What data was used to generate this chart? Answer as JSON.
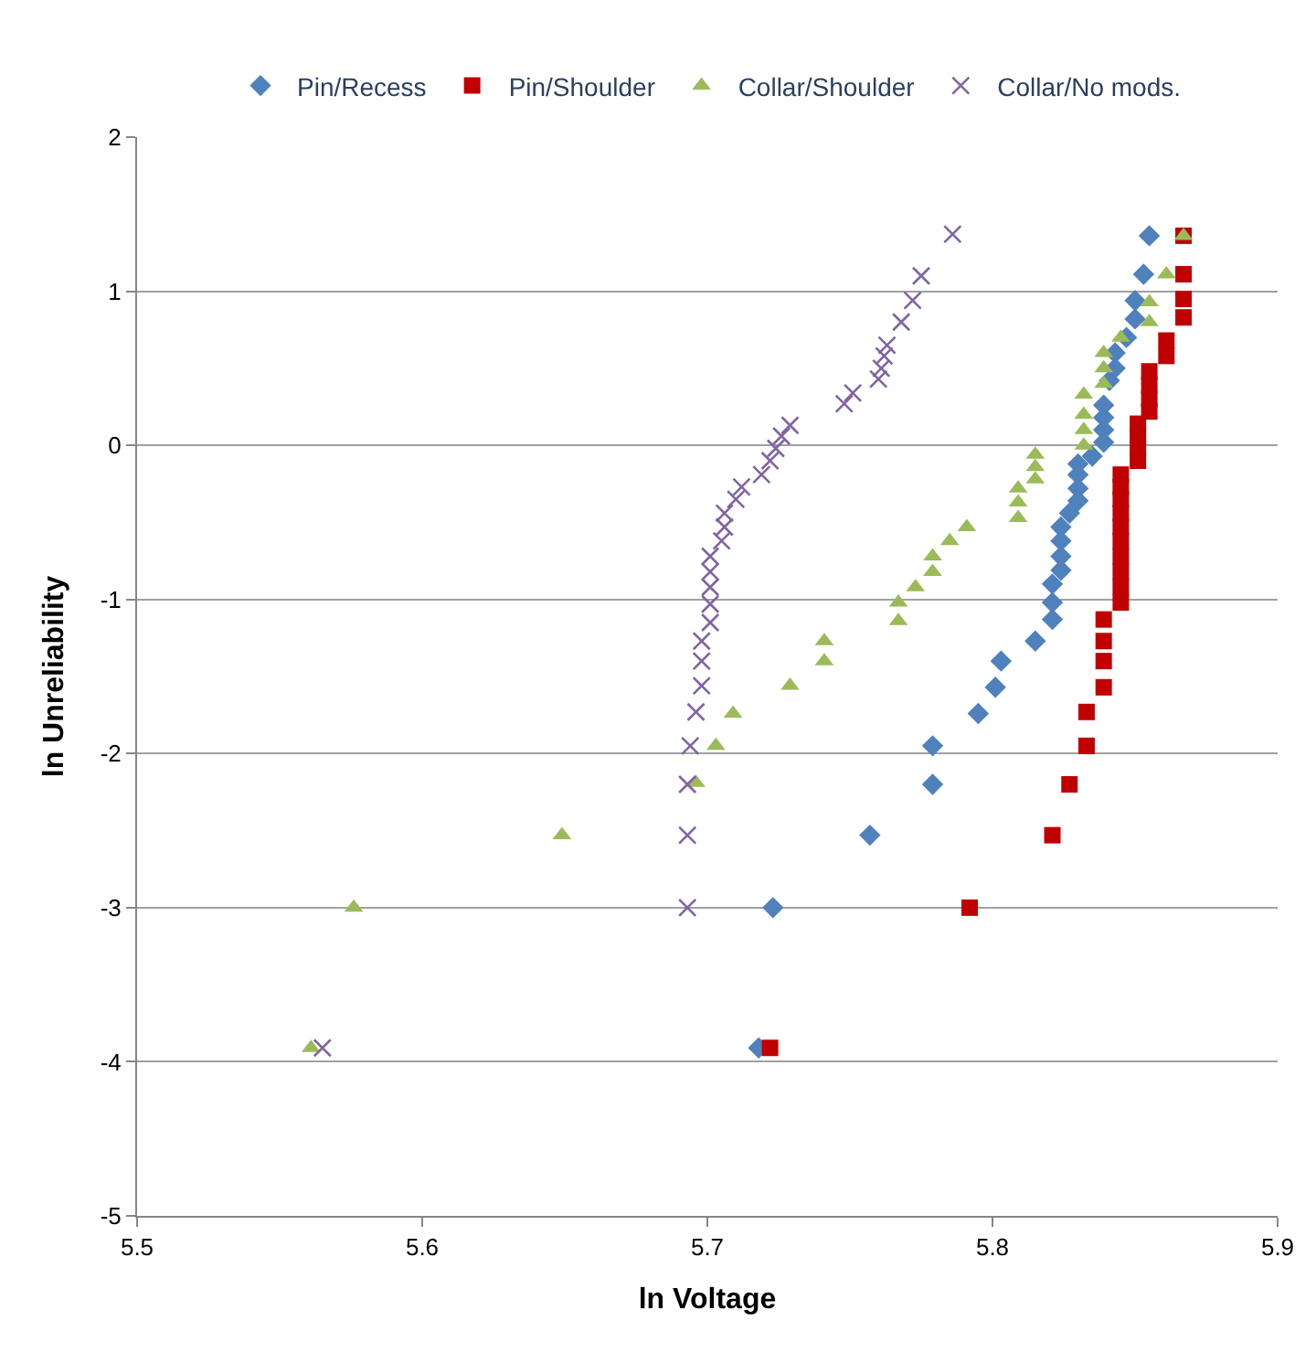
{
  "chart_data": {
    "type": "scatter",
    "xlabel": "ln Voltage",
    "ylabel": "ln Unreliability",
    "xlim": [
      5.5,
      5.9
    ],
    "xticks": [
      5.5,
      5.6,
      5.7,
      5.8,
      5.9
    ],
    "ylim": [
      -5,
      2
    ],
    "yticks": [
      -5,
      -4,
      -3,
      -2,
      -1,
      0,
      1,
      2
    ],
    "grid": "y",
    "legend": "top",
    "series": [
      {
        "name": "Pin/Recess",
        "color": "#4f81bd",
        "marker": "diamond",
        "x": [
          5.718,
          5.723,
          5.757,
          5.779,
          5.779,
          5.795,
          5.801,
          5.803,
          5.815,
          5.821,
          5.821,
          5.821,
          5.824,
          5.824,
          5.824,
          5.824,
          5.827,
          5.83,
          5.83,
          5.83,
          5.83,
          5.835,
          5.839,
          5.839,
          5.839,
          5.839,
          5.841,
          5.843,
          5.843,
          5.847,
          5.85,
          5.85,
          5.853,
          5.855
        ],
        "values": [
          -3.91,
          -3.0,
          -2.53,
          -2.2,
          -1.95,
          -1.74,
          -1.57,
          -1.4,
          -1.27,
          -1.13,
          -1.02,
          -0.9,
          -0.81,
          -0.72,
          -0.62,
          -0.53,
          -0.44,
          -0.36,
          -0.28,
          -0.19,
          -0.12,
          -0.07,
          0.02,
          0.1,
          0.18,
          0.26,
          0.42,
          0.5,
          0.6,
          0.7,
          0.82,
          0.94,
          1.11,
          1.36
        ]
      },
      {
        "name": "Pin/Shoulder",
        "color": "#c00000",
        "marker": "square",
        "x": [
          5.722,
          5.792,
          5.821,
          5.827,
          5.833,
          5.833,
          5.839,
          5.839,
          5.839,
          5.839,
          5.845,
          5.845,
          5.845,
          5.845,
          5.845,
          5.845,
          5.845,
          5.845,
          5.845,
          5.845,
          5.851,
          5.851,
          5.851,
          5.851,
          5.855,
          5.855,
          5.855,
          5.855,
          5.861,
          5.861,
          5.867,
          5.867,
          5.867,
          5.867
        ],
        "values": [
          -3.91,
          -3.0,
          -2.53,
          -2.2,
          -1.95,
          -1.73,
          -1.57,
          -1.4,
          -1.27,
          -1.13,
          -1.02,
          -0.92,
          -0.82,
          -0.72,
          -0.62,
          -0.53,
          -0.44,
          -0.35,
          -0.27,
          -0.19,
          -0.1,
          -0.02,
          0.06,
          0.14,
          0.22,
          0.3,
          0.39,
          0.48,
          0.58,
          0.68,
          0.83,
          0.95,
          1.11,
          1.36
        ]
      },
      {
        "name": "Collar/Shoulder",
        "color": "#9bbb59",
        "marker": "triangle",
        "x": [
          5.561,
          5.576,
          5.649,
          5.696,
          5.703,
          5.709,
          5.729,
          5.741,
          5.741,
          5.767,
          5.767,
          5.773,
          5.779,
          5.779,
          5.785,
          5.791,
          5.809,
          5.809,
          5.809,
          5.815,
          5.815,
          5.815,
          5.832,
          5.832,
          5.832,
          5.832,
          5.839,
          5.839,
          5.839,
          5.845,
          5.855,
          5.855,
          5.861,
          5.867
        ],
        "values": [
          -3.91,
          -3.0,
          -2.53,
          -2.19,
          -1.95,
          -1.74,
          -1.56,
          -1.4,
          -1.27,
          -1.14,
          -1.02,
          -0.92,
          -0.82,
          -0.72,
          -0.62,
          -0.53,
          -0.47,
          -0.37,
          -0.28,
          -0.22,
          -0.14,
          -0.06,
          0.0,
          0.1,
          0.2,
          0.33,
          0.4,
          0.5,
          0.6,
          0.7,
          0.8,
          0.93,
          1.11,
          1.36
        ]
      },
      {
        "name": "Collar/No mods.",
        "color": "#8064a2",
        "marker": "cross",
        "x": [
          5.565,
          5.693,
          5.693,
          5.693,
          5.694,
          5.696,
          5.698,
          5.698,
          5.698,
          5.701,
          5.701,
          5.701,
          5.701,
          5.701,
          5.705,
          5.706,
          5.706,
          5.71,
          5.712,
          5.719,
          5.722,
          5.724,
          5.726,
          5.729,
          5.748,
          5.751,
          5.76,
          5.761,
          5.762,
          5.763,
          5.768,
          5.772,
          5.775,
          5.786
        ],
        "values": [
          -3.91,
          -3.0,
          -2.53,
          -2.2,
          -1.95,
          -1.73,
          -1.56,
          -1.4,
          -1.27,
          -1.15,
          -1.03,
          -0.92,
          -0.82,
          -0.72,
          -0.62,
          -0.53,
          -0.44,
          -0.35,
          -0.27,
          -0.19,
          -0.1,
          -0.02,
          0.06,
          0.13,
          0.27,
          0.34,
          0.43,
          0.5,
          0.58,
          0.65,
          0.8,
          0.94,
          1.1,
          1.37
        ]
      }
    ]
  }
}
